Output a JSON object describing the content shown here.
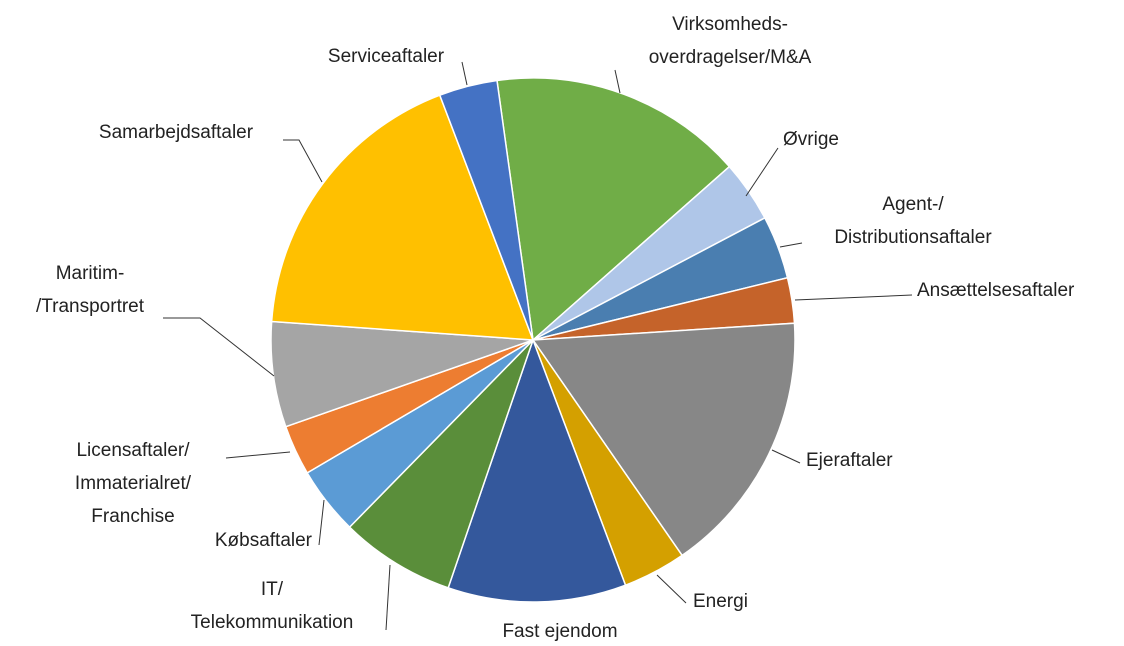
{
  "chart_data": {
    "type": "pie",
    "categories": [
      [
        "Virksomheds-",
        "overdragelser/M&A"
      ],
      [
        "Øvrige"
      ],
      [
        "Agent-/",
        "Distributionsaftaler"
      ],
      [
        "Ansættelsesaftaler"
      ],
      [
        "Ejeraftaler"
      ],
      [
        "Energi"
      ],
      [
        "Fast ejendom"
      ],
      [
        "IT/",
        "Telekommunikation"
      ],
      [
        "Købsaftaler"
      ],
      [
        "Licensaftaler/",
        "Immaterialret/",
        "Franchise"
      ],
      [
        "Maritim-",
        "/Transportret"
      ],
      [
        "Samarbejdsaftaler"
      ],
      [
        "Serviceaftaler"
      ]
    ],
    "values": [
      15.7,
      3.8,
      3.9,
      2.8,
      16.4,
      3.9,
      11,
      7.1,
      4.2,
      3.1,
      6.5,
      18.1,
      3.6
    ],
    "colors": [
      "#70ad47",
      "#afc6e8",
      "#4a7eb0",
      "#c5632a",
      "#878787",
      "#d4a000",
      "#34589c",
      "#5a8e3a",
      "#5b9bd5",
      "#ed7d31",
      "#a5a5a5",
      "#ffc000",
      "#4472c4"
    ]
  }
}
